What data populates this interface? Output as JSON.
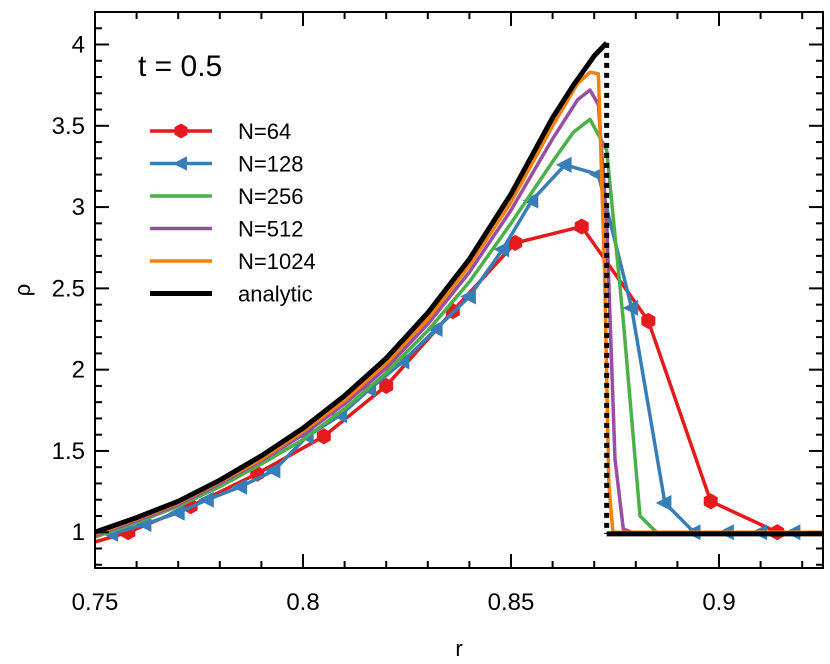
{
  "chart_data": {
    "type": "line",
    "title": "",
    "xlabel": "r",
    "ylabel": "ρ",
    "xlim": [
      0.75,
      0.925
    ],
    "ylim": [
      0.78,
      4.2
    ],
    "x_ticks": [
      0.75,
      0.8,
      0.85,
      0.9
    ],
    "x_tick_labels": [
      "0.75",
      "0.8",
      "0.85",
      "0.9"
    ],
    "y_ticks": [
      1,
      1.5,
      2,
      2.5,
      3,
      3.5,
      4
    ],
    "y_tick_labels": [
      "1",
      "1.5",
      "2",
      "2.5",
      "3",
      "3.5",
      "4"
    ],
    "grid": false,
    "legend_position": "upper-left",
    "annotation": "t = 0.5",
    "series": [
      {
        "name": "N=64",
        "color": "#e41a1c",
        "marker": "hexagon",
        "x": [
          0.742,
          0.758,
          0.773,
          0.789,
          0.805,
          0.82,
          0.836,
          0.851,
          0.867,
          0.883,
          0.898,
          0.914,
          0.93
        ],
        "y": [
          0.88,
          1.0,
          1.16,
          1.36,
          1.59,
          1.9,
          2.36,
          2.78,
          2.88,
          2.3,
          1.19,
          1.0,
          1.0
        ]
      },
      {
        "name": "N=128",
        "color": "#377eb8",
        "marker": "triangle-left",
        "x": [
          0.754,
          0.762,
          0.77,
          0.777,
          0.785,
          0.793,
          0.801,
          0.809,
          0.816,
          0.824,
          0.832,
          0.84,
          0.848,
          0.855,
          0.863,
          0.871,
          0.879,
          0.887,
          0.894,
          0.902,
          0.91,
          0.918
        ],
        "y": [
          0.99,
          1.05,
          1.12,
          1.2,
          1.28,
          1.38,
          1.59,
          1.72,
          1.88,
          2.05,
          2.25,
          2.45,
          2.74,
          3.04,
          3.26,
          3.2,
          2.38,
          1.18,
          1.0,
          1.0,
          1.0,
          1.0
        ]
      },
      {
        "name": "N=256",
        "color": "#4daf4a",
        "marker": "none",
        "x": [
          0.75,
          0.76,
          0.77,
          0.78,
          0.79,
          0.8,
          0.81,
          0.82,
          0.83,
          0.84,
          0.85,
          0.86,
          0.865,
          0.869,
          0.873,
          0.877,
          0.881,
          0.885,
          0.89,
          0.9,
          0.925
        ],
        "y": [
          0.97,
          1.06,
          1.16,
          1.28,
          1.42,
          1.57,
          1.76,
          1.98,
          2.24,
          2.54,
          2.9,
          3.28,
          3.46,
          3.54,
          3.35,
          2.3,
          1.1,
          1.0,
          1.0,
          1.0,
          1.0
        ]
      },
      {
        "name": "N=512",
        "color": "#984ea3",
        "marker": "none",
        "x": [
          0.75,
          0.76,
          0.77,
          0.78,
          0.79,
          0.8,
          0.81,
          0.82,
          0.83,
          0.84,
          0.85,
          0.86,
          0.866,
          0.869,
          0.871,
          0.873,
          0.875,
          0.877,
          0.879,
          0.9,
          0.925
        ],
        "y": [
          0.98,
          1.07,
          1.17,
          1.3,
          1.44,
          1.6,
          1.79,
          2.01,
          2.28,
          2.6,
          2.98,
          3.42,
          3.66,
          3.72,
          3.63,
          2.9,
          1.45,
          1.02,
          1.0,
          1.0,
          1.0
        ]
      },
      {
        "name": "N=1024",
        "color": "#ff7f00",
        "marker": "none",
        "x": [
          0.75,
          0.76,
          0.77,
          0.78,
          0.79,
          0.8,
          0.81,
          0.82,
          0.83,
          0.84,
          0.85,
          0.86,
          0.866,
          0.869,
          0.871,
          0.8725,
          0.8735,
          0.8745,
          0.876,
          0.9,
          0.925
        ],
        "y": [
          0.99,
          1.08,
          1.18,
          1.31,
          1.45,
          1.62,
          1.81,
          2.04,
          2.31,
          2.64,
          3.03,
          3.5,
          3.76,
          3.83,
          3.82,
          2.6,
          1.3,
          1.0,
          1.0,
          1.0,
          1.0
        ]
      },
      {
        "name": "analytic",
        "color": "#000000",
        "marker": "none",
        "x": [
          0.75,
          0.76,
          0.77,
          0.78,
          0.79,
          0.8,
          0.81,
          0.82,
          0.83,
          0.84,
          0.85,
          0.86,
          0.865,
          0.87,
          0.873,
          0.873,
          0.925
        ],
        "y": [
          1.0,
          1.09,
          1.19,
          1.32,
          1.47,
          1.64,
          1.84,
          2.07,
          2.35,
          2.68,
          3.08,
          3.55,
          3.75,
          3.93,
          4.01,
          0.99,
          0.99
        ]
      }
    ]
  }
}
